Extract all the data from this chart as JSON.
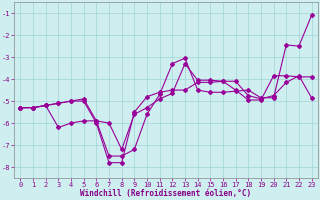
{
  "xlabel": "Windchill (Refroidissement éolien,°C)",
  "ylabel": "",
  "bg_color": "#ceeef0",
  "grid_color": "#a8d8d8",
  "line_color": "#990099",
  "xlim": [
    -0.5,
    23.5
  ],
  "ylim": [
    -8.5,
    -0.5
  ],
  "xticks": [
    0,
    1,
    2,
    3,
    4,
    5,
    6,
    7,
    8,
    9,
    10,
    11,
    12,
    13,
    14,
    15,
    16,
    17,
    18,
    19,
    20,
    21,
    22,
    23
  ],
  "yticks": [
    -8,
    -7,
    -6,
    -5,
    -4,
    -3,
    -2,
    -1
  ],
  "series1_x": [
    0,
    1,
    2,
    3,
    4,
    5,
    6,
    7,
    8,
    9,
    10,
    11,
    12,
    13,
    14,
    15,
    16,
    17,
    18,
    19,
    20,
    21,
    22,
    23
  ],
  "series1_y": [
    -5.3,
    -5.3,
    -5.2,
    -5.1,
    -5.0,
    -5.0,
    -6.0,
    -7.8,
    -7.8,
    -5.5,
    -4.8,
    -4.6,
    -4.5,
    -4.5,
    -4.15,
    -4.15,
    -4.1,
    -4.1,
    -4.75,
    -4.9,
    -4.75,
    -4.15,
    -3.85,
    -4.85
  ],
  "series2_x": [
    0,
    1,
    2,
    3,
    4,
    5,
    6,
    7,
    8,
    9,
    10,
    11,
    12,
    13,
    14,
    15,
    16,
    17,
    18,
    19,
    20,
    21,
    22,
    23
  ],
  "series2_y": [
    -5.3,
    -5.3,
    -5.2,
    -6.2,
    -6.0,
    -5.9,
    -5.9,
    -7.5,
    -7.5,
    -7.2,
    -5.6,
    -4.7,
    -3.3,
    -3.05,
    -4.5,
    -4.6,
    -4.6,
    -4.55,
    -4.5,
    -4.85,
    -4.85,
    -2.45,
    -2.5,
    -1.1
  ],
  "series3_x": [
    0,
    1,
    2,
    3,
    4,
    5,
    6,
    7,
    8,
    9,
    10,
    11,
    12,
    13,
    14,
    15,
    16,
    17,
    18,
    19,
    20,
    21,
    22,
    23
  ],
  "series3_y": [
    -5.3,
    -5.3,
    -5.2,
    -5.1,
    -5.0,
    -4.9,
    -5.9,
    -6.0,
    -7.2,
    -5.6,
    -5.3,
    -4.9,
    -4.65,
    -3.3,
    -4.05,
    -4.05,
    -4.1,
    -4.5,
    -4.95,
    -4.95,
    -3.85,
    -3.85,
    -3.9,
    -3.9
  ],
  "tick_fontsize": 5.0,
  "xlabel_fontsize": 5.5
}
